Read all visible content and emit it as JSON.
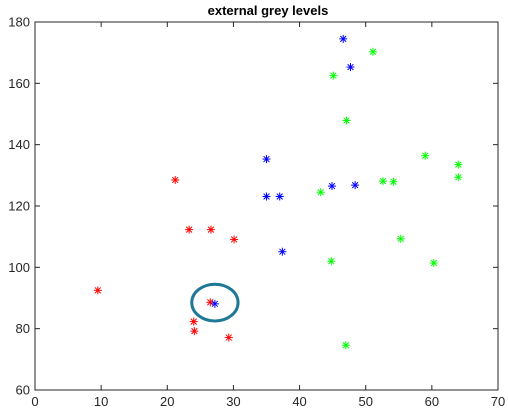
{
  "chart_data": {
    "type": "scatter",
    "title": "external grey levels",
    "xlabel": "",
    "ylabel": "",
    "xlim": [
      0,
      70
    ],
    "ylim": [
      60,
      180
    ],
    "xticks": [
      0,
      10,
      20,
      30,
      40,
      50,
      60,
      70
    ],
    "yticks": [
      60,
      80,
      100,
      120,
      140,
      160,
      180
    ],
    "grid": false,
    "legend": false,
    "marker": "asterisk",
    "series": [
      {
        "color": "#ff0000",
        "points": [
          [
            9.5,
            92.5
          ],
          [
            21.2,
            128.5
          ],
          [
            23.3,
            112.3
          ],
          [
            26.6,
            112.3
          ],
          [
            30.1,
            109.1
          ],
          [
            26.5,
            88.6
          ],
          [
            24.0,
            82.3
          ],
          [
            24.1,
            79.2
          ],
          [
            29.3,
            77.1
          ]
        ]
      },
      {
        "color": "#0000ff",
        "points": [
          [
            46.6,
            174.5
          ],
          [
            47.7,
            165.3
          ],
          [
            35.0,
            135.3
          ],
          [
            35.0,
            123.1
          ],
          [
            37.0,
            123.1
          ],
          [
            44.9,
            126.5
          ],
          [
            48.4,
            126.8
          ],
          [
            37.4,
            105.1
          ],
          [
            27.2,
            88.1
          ]
        ]
      },
      {
        "color": "#00ff00",
        "points": [
          [
            51.1,
            170.3
          ],
          [
            45.1,
            162.5
          ],
          [
            47.1,
            147.9
          ],
          [
            59.0,
            136.4
          ],
          [
            64.0,
            133.5
          ],
          [
            64.0,
            129.4
          ],
          [
            52.6,
            128.1
          ],
          [
            54.2,
            127.9
          ],
          [
            43.2,
            124.5
          ],
          [
            55.3,
            109.3
          ],
          [
            44.8,
            102.0
          ],
          [
            60.3,
            101.4
          ],
          [
            47.0,
            74.6
          ]
        ]
      }
    ],
    "annotation": {
      "type": "ellipse",
      "center": [
        27.2,
        88.5
      ],
      "radius": [
        3.5,
        6.0
      ],
      "color": "#1f7896"
    }
  }
}
